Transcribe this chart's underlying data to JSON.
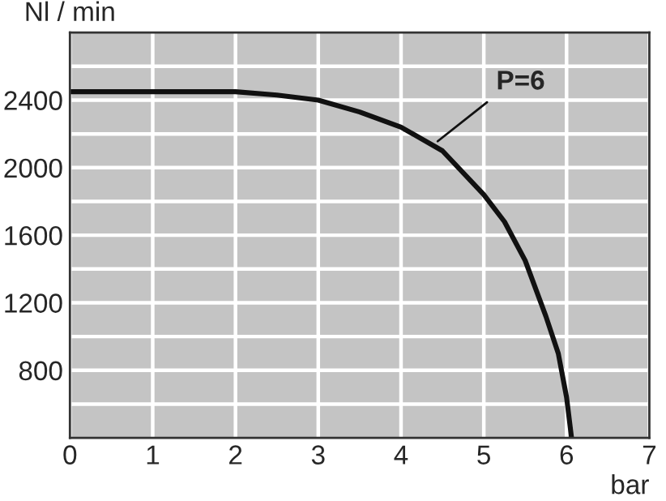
{
  "chart_data": {
    "type": "line",
    "xlabel": "bar",
    "ylabel": "Nl / min",
    "x": [
      0,
      1,
      2,
      2.5,
      3,
      3.5,
      4,
      4.5,
      5,
      5.25,
      5.5,
      5.75,
      5.9,
      6,
      6.06
    ],
    "series": [
      {
        "color": "#111111",
        "values": [
          2450,
          2450,
          2450,
          2430,
          2400,
          2330,
          2240,
          2100,
          1840,
          1680,
          1450,
          1120,
          900,
          640,
          400
        ]
      }
    ],
    "annotations": [
      {
        "text": "P=6",
        "x": 4.4,
        "y": 2140
      }
    ],
    "xlim": [
      0,
      7
    ],
    "xticks": [
      0,
      1,
      2,
      3,
      4,
      5,
      6,
      7
    ],
    "ylim": [
      400,
      2800
    ],
    "yticks": [
      {
        "value": 600,
        "label": null
      },
      800,
      {
        "value": 1000,
        "label": null
      },
      1200,
      {
        "value": 1400,
        "label": null
      },
      1600,
      {
        "value": 1800,
        "label": null
      },
      2000,
      {
        "value": 2200,
        "label": null
      },
      2400,
      {
        "value": 2600,
        "label": null
      }
    ],
    "grid": true,
    "marker": "none",
    "line_style": "solid"
  }
}
